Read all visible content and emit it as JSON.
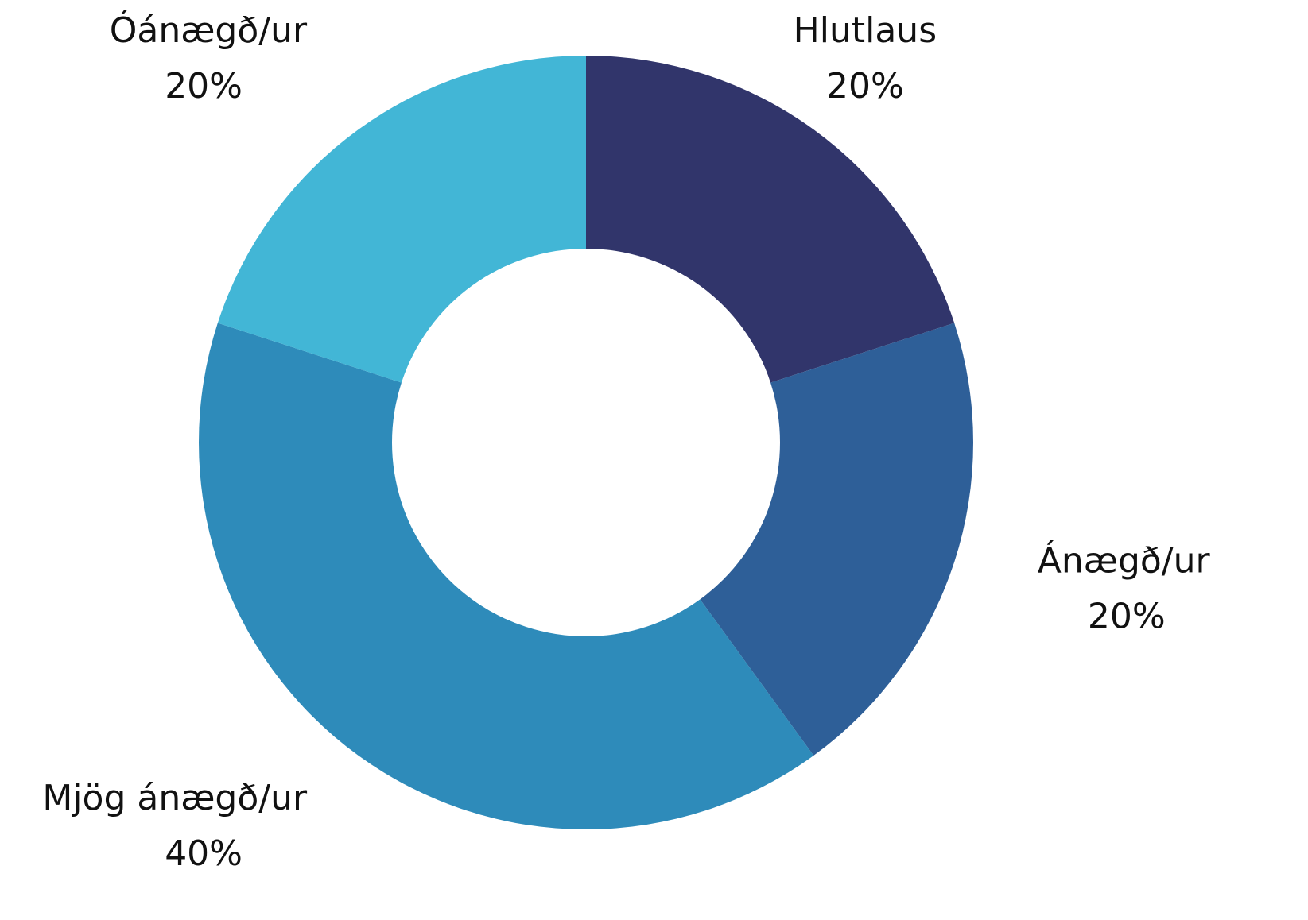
{
  "chart_data": {
    "type": "donut",
    "categories": [
      "Hlutlaus",
      "Ánægð/ur",
      "Mjög ánægð/ur",
      "Óánægð/ur"
    ],
    "values": [
      20,
      20,
      40,
      20
    ],
    "value_labels": [
      "20%",
      "20%",
      "40%",
      "20%"
    ],
    "colors": [
      "#31356b",
      "#2e5f98",
      "#2e8bba",
      "#42b6d6"
    ]
  }
}
